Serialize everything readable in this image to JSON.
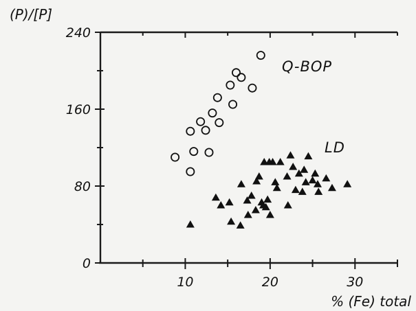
{
  "chart_data": {
    "type": "scatter",
    "ylabel": "(P)/[P]",
    "xlabel": "% (Fe) total",
    "xlim": [
      0,
      35
    ],
    "ylim": [
      0,
      240
    ],
    "x_ticks": [
      10,
      20,
      30
    ],
    "y_ticks": [
      0,
      80,
      160,
      240
    ],
    "grid": false,
    "series": [
      {
        "name": "Q-BOP",
        "marker": "open-circle",
        "color": "#111111",
        "points": [
          [
            8.8,
            110
          ],
          [
            10.6,
            137
          ],
          [
            10.6,
            95
          ],
          [
            11.0,
            116
          ],
          [
            11.8,
            147
          ],
          [
            12.4,
            138
          ],
          [
            12.8,
            115
          ],
          [
            13.2,
            156
          ],
          [
            13.8,
            172
          ],
          [
            14.0,
            146
          ],
          [
            15.3,
            185
          ],
          [
            15.6,
            165
          ],
          [
            16.0,
            198
          ],
          [
            16.6,
            193
          ],
          [
            17.9,
            182
          ],
          [
            18.9,
            216
          ]
        ]
      },
      {
        "name": "LD",
        "marker": "filled-triangle",
        "color": "#111111",
        "points": [
          [
            10.6,
            40
          ],
          [
            13.6,
            68
          ],
          [
            14.2,
            60
          ],
          [
            15.2,
            63
          ],
          [
            15.4,
            43
          ],
          [
            16.5,
            39
          ],
          [
            16.6,
            82
          ],
          [
            17.3,
            65
          ],
          [
            17.4,
            50
          ],
          [
            17.8,
            70
          ],
          [
            18.3,
            55
          ],
          [
            18.4,
            85
          ],
          [
            18.7,
            90
          ],
          [
            19.0,
            63
          ],
          [
            19.2,
            60
          ],
          [
            19.3,
            105
          ],
          [
            19.5,
            58
          ],
          [
            19.7,
            66
          ],
          [
            19.9,
            105
          ],
          [
            20.0,
            50
          ],
          [
            20.3,
            105
          ],
          [
            20.6,
            84
          ],
          [
            20.8,
            78
          ],
          [
            21.2,
            105
          ],
          [
            22.0,
            90
          ],
          [
            22.1,
            60
          ],
          [
            22.4,
            112
          ],
          [
            22.7,
            100
          ],
          [
            23.0,
            76
          ],
          [
            23.4,
            93
          ],
          [
            23.8,
            74
          ],
          [
            24.0,
            97
          ],
          [
            24.2,
            84
          ],
          [
            24.5,
            111
          ],
          [
            25.0,
            86
          ],
          [
            25.3,
            93
          ],
          [
            25.6,
            82
          ],
          [
            25.7,
            74
          ],
          [
            26.6,
            88
          ],
          [
            27.3,
            78
          ],
          [
            29.1,
            82
          ]
        ]
      }
    ]
  }
}
